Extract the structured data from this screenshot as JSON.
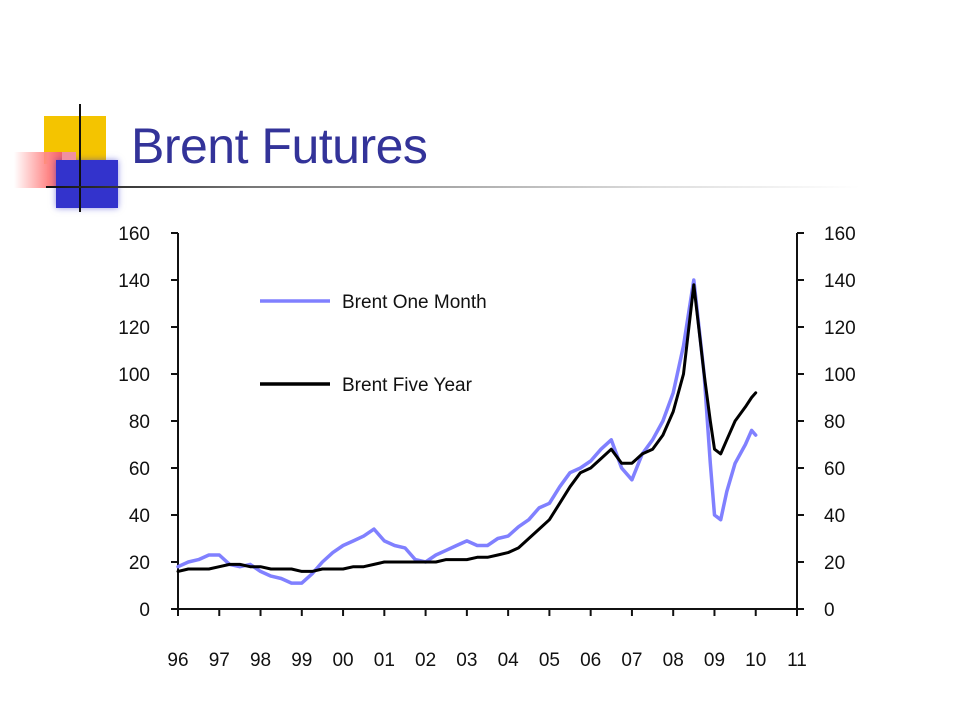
{
  "slide": {
    "title": "Brent Futures"
  },
  "colors": {
    "title": "#333399",
    "one_month": "#8080ff",
    "five_year": "#000000"
  },
  "chart_data": {
    "type": "line",
    "title": "",
    "xlabel": "",
    "ylabel": "",
    "x_ticks": [
      "96",
      "97",
      "98",
      "99",
      "00",
      "01",
      "02",
      "03",
      "04",
      "05",
      "06",
      "07",
      "08",
      "09",
      "10",
      "11"
    ],
    "xlim": [
      1996,
      2011
    ],
    "ylim": [
      0,
      160
    ],
    "y_ticks_left": [
      "0",
      "20",
      "40",
      "60",
      "80",
      "100",
      "120",
      "140",
      "160"
    ],
    "y_ticks_right": [
      "0",
      "20",
      "40",
      "60",
      "80",
      "100",
      "120",
      "140",
      "160"
    ],
    "grid": false,
    "legend_position": "top-left",
    "series": [
      {
        "name": "Brent One Month",
        "color": "#8080ff",
        "x": [
          1996.0,
          1996.25,
          1996.5,
          1996.75,
          1997.0,
          1997.25,
          1997.5,
          1997.75,
          1998.0,
          1998.25,
          1998.5,
          1998.75,
          1999.0,
          1999.25,
          1999.5,
          1999.75,
          2000.0,
          2000.25,
          2000.5,
          2000.75,
          2001.0,
          2001.25,
          2001.5,
          2001.75,
          2002.0,
          2002.25,
          2002.5,
          2002.75,
          2003.0,
          2003.25,
          2003.5,
          2003.75,
          2004.0,
          2004.25,
          2004.5,
          2004.75,
          2005.0,
          2005.25,
          2005.5,
          2005.75,
          2006.0,
          2006.25,
          2006.5,
          2006.75,
          2007.0,
          2007.25,
          2007.5,
          2007.75,
          2008.0,
          2008.25,
          2008.5,
          2008.75,
          2008.9,
          2009.0,
          2009.15,
          2009.3,
          2009.5,
          2009.75,
          2009.9,
          2010.0
        ],
        "values": [
          18,
          20,
          21,
          23,
          23,
          19,
          18,
          19,
          16,
          14,
          13,
          11,
          11,
          15,
          20,
          24,
          27,
          29,
          31,
          34,
          29,
          27,
          26,
          21,
          20,
          23,
          25,
          27,
          29,
          27,
          27,
          30,
          31,
          35,
          38,
          43,
          45,
          52,
          58,
          60,
          63,
          68,
          72,
          60,
          55,
          66,
          72,
          80,
          92,
          112,
          140,
          100,
          62,
          40,
          38,
          50,
          62,
          70,
          76,
          74
        ]
      },
      {
        "name": "Brent Five Year",
        "color": "#000000",
        "x": [
          1996.0,
          1996.25,
          1996.5,
          1996.75,
          1997.0,
          1997.25,
          1997.5,
          1997.75,
          1998.0,
          1998.25,
          1998.5,
          1998.75,
          1999.0,
          1999.25,
          1999.5,
          1999.75,
          2000.0,
          2000.25,
          2000.5,
          2000.75,
          2001.0,
          2001.25,
          2001.5,
          2001.75,
          2002.0,
          2002.25,
          2002.5,
          2002.75,
          2003.0,
          2003.25,
          2003.5,
          2003.75,
          2004.0,
          2004.25,
          2004.5,
          2004.75,
          2005.0,
          2005.25,
          2005.5,
          2005.75,
          2006.0,
          2006.25,
          2006.5,
          2006.75,
          2007.0,
          2007.25,
          2007.5,
          2007.75,
          2008.0,
          2008.25,
          2008.5,
          2008.75,
          2008.9,
          2009.0,
          2009.15,
          2009.3,
          2009.5,
          2009.75,
          2009.9,
          2010.0
        ],
        "values": [
          16,
          17,
          17,
          17,
          18,
          19,
          19,
          18,
          18,
          17,
          17,
          17,
          16,
          16,
          17,
          17,
          17,
          18,
          18,
          19,
          20,
          20,
          20,
          20,
          20,
          20,
          21,
          21,
          21,
          22,
          22,
          23,
          24,
          26,
          30,
          34,
          38,
          45,
          52,
          58,
          60,
          64,
          68,
          62,
          62,
          66,
          68,
          74,
          84,
          100,
          138,
          100,
          80,
          68,
          66,
          72,
          80,
          86,
          90,
          92
        ]
      }
    ]
  }
}
